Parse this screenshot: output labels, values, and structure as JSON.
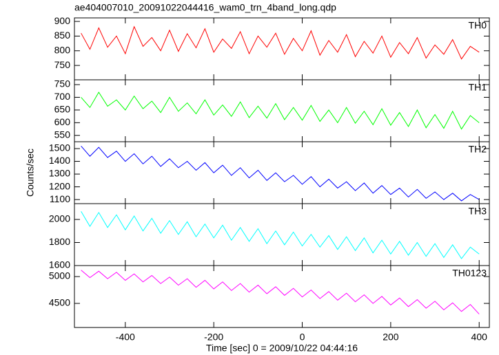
{
  "chart_data": {
    "type": "line",
    "title": "ae404007010_20091022044416_wam0_trn_4band_long.qdp",
    "ylabel": "Counts/sec",
    "xlabel": "Time [sec] 0 = 2009/10/22 04:44:16",
    "xlim": [
      -515,
      423
    ],
    "xticks": [
      -400,
      -200,
      0,
      200,
      400
    ],
    "x": [
      -500,
      -480,
      -460,
      -440,
      -420,
      -400,
      -380,
      -360,
      -340,
      -320,
      -300,
      -280,
      -260,
      -240,
      -220,
      -200,
      -180,
      -160,
      -140,
      -120,
      -100,
      -80,
      -60,
      -40,
      -20,
      0,
      20,
      40,
      60,
      80,
      100,
      120,
      140,
      160,
      180,
      200,
      220,
      240,
      260,
      280,
      300,
      320,
      340,
      360,
      380,
      400
    ],
    "series": [
      {
        "name": "TH0",
        "color": "#ff0000",
        "ylim": [
          701,
          912
        ],
        "yticks": [
          750,
          800,
          850,
          900
        ],
        "values": [
          860,
          805,
          878,
          812,
          850,
          790,
          882,
          815,
          845,
          800,
          870,
          798,
          858,
          810,
          875,
          795,
          840,
          808,
          865,
          790,
          850,
          812,
          860,
          788,
          842,
          800,
          868,
          785,
          835,
          795,
          855,
          780,
          832,
          792,
          850,
          778,
          828,
          790,
          845,
          775,
          820,
          788,
          838,
          772,
          815,
          795
        ]
      },
      {
        "name": "TH1",
        "color": "#00ff00",
        "ylim": [
          525,
          769
        ],
        "yticks": [
          550,
          600,
          650,
          700,
          750
        ],
        "values": [
          700,
          660,
          720,
          665,
          690,
          650,
          705,
          655,
          685,
          640,
          700,
          645,
          678,
          635,
          690,
          630,
          670,
          625,
          682,
          620,
          665,
          618,
          675,
          612,
          660,
          610,
          668,
          605,
          650,
          600,
          660,
          598,
          645,
          592,
          655,
          590,
          640,
          585,
          650,
          580,
          632,
          578,
          645,
          575,
          628,
          600
        ]
      },
      {
        "name": "TH2",
        "color": "#0000ff",
        "ylim": [
          1068,
          1554
        ],
        "yticks": [
          1100,
          1200,
          1300,
          1400,
          1500
        ],
        "values": [
          1520,
          1440,
          1510,
          1430,
          1480,
          1400,
          1460,
          1380,
          1440,
          1360,
          1420,
          1350,
          1400,
          1330,
          1390,
          1310,
          1370,
          1290,
          1350,
          1270,
          1330,
          1250,
          1310,
          1240,
          1290,
          1220,
          1280,
          1200,
          1260,
          1190,
          1240,
          1170,
          1230,
          1150,
          1210,
          1140,
          1190,
          1120,
          1180,
          1110,
          1160,
          1100,
          1150,
          1090,
          1140,
          1100
        ]
      },
      {
        "name": "TH3",
        "color": "#00ffff",
        "ylim": [
          1600,
          2137
        ],
        "yticks": [
          1600,
          1800,
          2000
        ],
        "values": [
          2070,
          1940,
          2060,
          1930,
          2040,
          1910,
          2030,
          1900,
          2010,
          1880,
          1990,
          1870,
          1980,
          1850,
          1960,
          1840,
          1950,
          1820,
          1930,
          1810,
          1920,
          1790,
          1900,
          1780,
          1890,
          1770,
          1870,
          1760,
          1860,
          1740,
          1850,
          1730,
          1840,
          1710,
          1820,
          1700,
          1810,
          1690,
          1800,
          1680,
          1790,
          1670,
          1780,
          1660,
          1760,
          1700
        ]
      },
      {
        "name": "TH0123",
        "color": "#ff00ff",
        "ylim": [
          4051,
          5205
        ],
        "yticks": [
          4500,
          5000
        ],
        "values": [
          5120,
          4980,
          5100,
          4960,
          5080,
          4930,
          5050,
          4900,
          5020,
          4870,
          4990,
          4840,
          4960,
          4800,
          4930,
          4770,
          4900,
          4740,
          4870,
          4710,
          4840,
          4680,
          4810,
          4650,
          4780,
          4620,
          4750,
          4590,
          4720,
          4560,
          4690,
          4530,
          4660,
          4500,
          4630,
          4470,
          4600,
          4440,
          4570,
          4410,
          4540,
          4380,
          4510,
          4350,
          4480,
          4300
        ]
      }
    ]
  }
}
